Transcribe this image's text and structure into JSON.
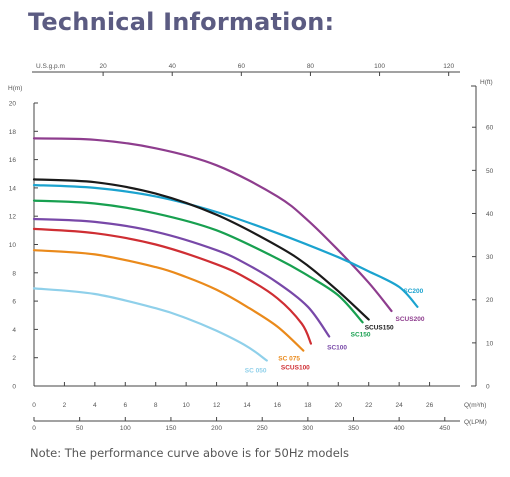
{
  "title": "Technical Information:",
  "footnote": "Note: The performance curve above is for 50Hz models",
  "colors": {
    "axis": "#444444",
    "tick_text": "#555555",
    "SC200": "#1ba3cf",
    "SCUS200": "#8e3d8e",
    "SCUS150": "#1a1a1a",
    "SC150": "#18a050",
    "SC100": "#7848a8",
    "SCUS100": "#cf2e33",
    "SC075": "#ea8a1b",
    "SC050": "#8fd0ea"
  },
  "chart_data": {
    "type": "line",
    "grid": false,
    "axes": {
      "x_main": {
        "label": "Q(m³/h)",
        "range": [
          0,
          28
        ],
        "ticks": [
          0,
          2,
          4,
          6,
          8,
          10,
          12,
          14,
          16,
          18,
          20,
          22,
          24,
          26
        ]
      },
      "x_lpm": {
        "label": "Q(LPM)",
        "ticks": [
          0,
          50,
          100,
          150,
          200,
          250,
          300,
          350,
          400,
          450
        ]
      },
      "x_usgpm": {
        "label": "U.S.g.p.m",
        "ticks": [
          20,
          40,
          60,
          80,
          100,
          120
        ]
      },
      "y_left": {
        "label": "H(m)",
        "range": [
          0,
          20
        ],
        "ticks": [
          0,
          2,
          4,
          6,
          8,
          10,
          12,
          14,
          16,
          18,
          20
        ]
      },
      "y_right": {
        "label": "H(ft)",
        "ticks": [
          0,
          10,
          20,
          30,
          40,
          50,
          60
        ]
      }
    },
    "series": [
      {
        "name": "SCUS200",
        "label": "SCUS200",
        "color_key": "SCUS200",
        "points": [
          [
            0,
            17.5
          ],
          [
            4,
            17.4
          ],
          [
            8,
            16.8
          ],
          [
            12,
            15.6
          ],
          [
            16,
            13.4
          ],
          [
            18,
            11.7
          ],
          [
            20,
            9.6
          ],
          [
            22,
            7.3
          ],
          [
            23.5,
            5.3
          ]
        ]
      },
      {
        "name": "SC200",
        "label": "SC200",
        "color_key": "SC200",
        "points": [
          [
            0,
            14.2
          ],
          [
            4,
            14.0
          ],
          [
            8,
            13.4
          ],
          [
            12,
            12.3
          ],
          [
            16,
            10.8
          ],
          [
            20,
            9.1
          ],
          [
            22,
            8.1
          ],
          [
            24,
            7.0
          ],
          [
            25.2,
            5.6
          ]
        ]
      },
      {
        "name": "SCUS150",
        "label": "SCUS150",
        "color_key": "SCUS150",
        "points": [
          [
            0,
            14.6
          ],
          [
            4,
            14.4
          ],
          [
            8,
            13.6
          ],
          [
            12,
            12.1
          ],
          [
            16,
            9.9
          ],
          [
            18,
            8.5
          ],
          [
            20,
            6.7
          ],
          [
            22,
            4.7
          ]
        ]
      },
      {
        "name": "SC150",
        "label": "SC150",
        "color_key": "SC150",
        "points": [
          [
            0,
            13.1
          ],
          [
            4,
            12.9
          ],
          [
            8,
            12.2
          ],
          [
            12,
            11.0
          ],
          [
            16,
            9.0
          ],
          [
            18,
            7.8
          ],
          [
            20,
            6.4
          ],
          [
            21.6,
            4.5
          ]
        ]
      },
      {
        "name": "SC100",
        "label": "SC100",
        "color_key": "SC100",
        "points": [
          [
            0,
            11.8
          ],
          [
            4,
            11.6
          ],
          [
            8,
            10.9
          ],
          [
            12,
            9.6
          ],
          [
            14,
            8.6
          ],
          [
            16,
            7.3
          ],
          [
            18,
            5.6
          ],
          [
            19.4,
            3.5
          ]
        ]
      },
      {
        "name": "SCUS100",
        "label": "SCUS100",
        "color_key": "SCUS100",
        "points": [
          [
            0,
            11.1
          ],
          [
            4,
            10.8
          ],
          [
            8,
            10.0
          ],
          [
            12,
            8.6
          ],
          [
            14,
            7.6
          ],
          [
            16,
            6.2
          ],
          [
            17.6,
            4.4
          ],
          [
            18.2,
            3.0
          ]
        ]
      },
      {
        "name": "SC075",
        "label": "SC 075",
        "color_key": "SC075",
        "points": [
          [
            0,
            9.6
          ],
          [
            4,
            9.3
          ],
          [
            8,
            8.4
          ],
          [
            10,
            7.7
          ],
          [
            12,
            6.8
          ],
          [
            14,
            5.6
          ],
          [
            16,
            4.2
          ],
          [
            17.7,
            2.5
          ]
        ]
      },
      {
        "name": "SC050",
        "label": "SC 050",
        "color_key": "SC050",
        "points": [
          [
            0,
            6.9
          ],
          [
            4,
            6.5
          ],
          [
            8,
            5.5
          ],
          [
            10,
            4.8
          ],
          [
            12,
            3.9
          ],
          [
            14,
            2.8
          ],
          [
            15.3,
            1.8
          ]
        ]
      }
    ]
  }
}
